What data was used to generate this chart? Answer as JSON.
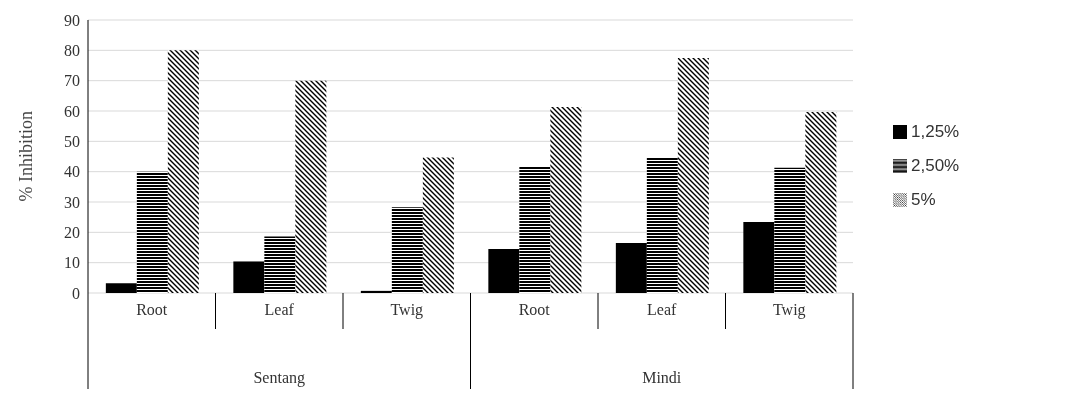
{
  "chart_data": {
    "type": "bar",
    "ylabel": "% Inhibition",
    "categories": [
      "Root",
      "Leaf",
      "Twig",
      "Root",
      "Leaf",
      "Twig"
    ],
    "annotations": [
      "Sentang",
      "Mindi"
    ],
    "series": [
      {
        "name": "1,25%",
        "color": "#000000",
        "values": [
          3.2,
          10.4,
          0.7,
          14.5,
          16.5,
          23.4
        ]
      },
      {
        "name": "2,50%",
        "color": "#000000",
        "values": [
          40,
          18.6,
          28.3,
          41.5,
          44.7,
          41.3
        ]
      },
      {
        "name": "5%",
        "color": "#000000",
        "values": [
          80,
          70,
          44.7,
          61.3,
          77.5,
          59.7
        ]
      }
    ],
    "ylim": [
      0,
      90
    ],
    "yticks": [
      0,
      10,
      20,
      30,
      40,
      50,
      60,
      70,
      80,
      90
    ],
    "grid": "y",
    "legend": "right"
  }
}
